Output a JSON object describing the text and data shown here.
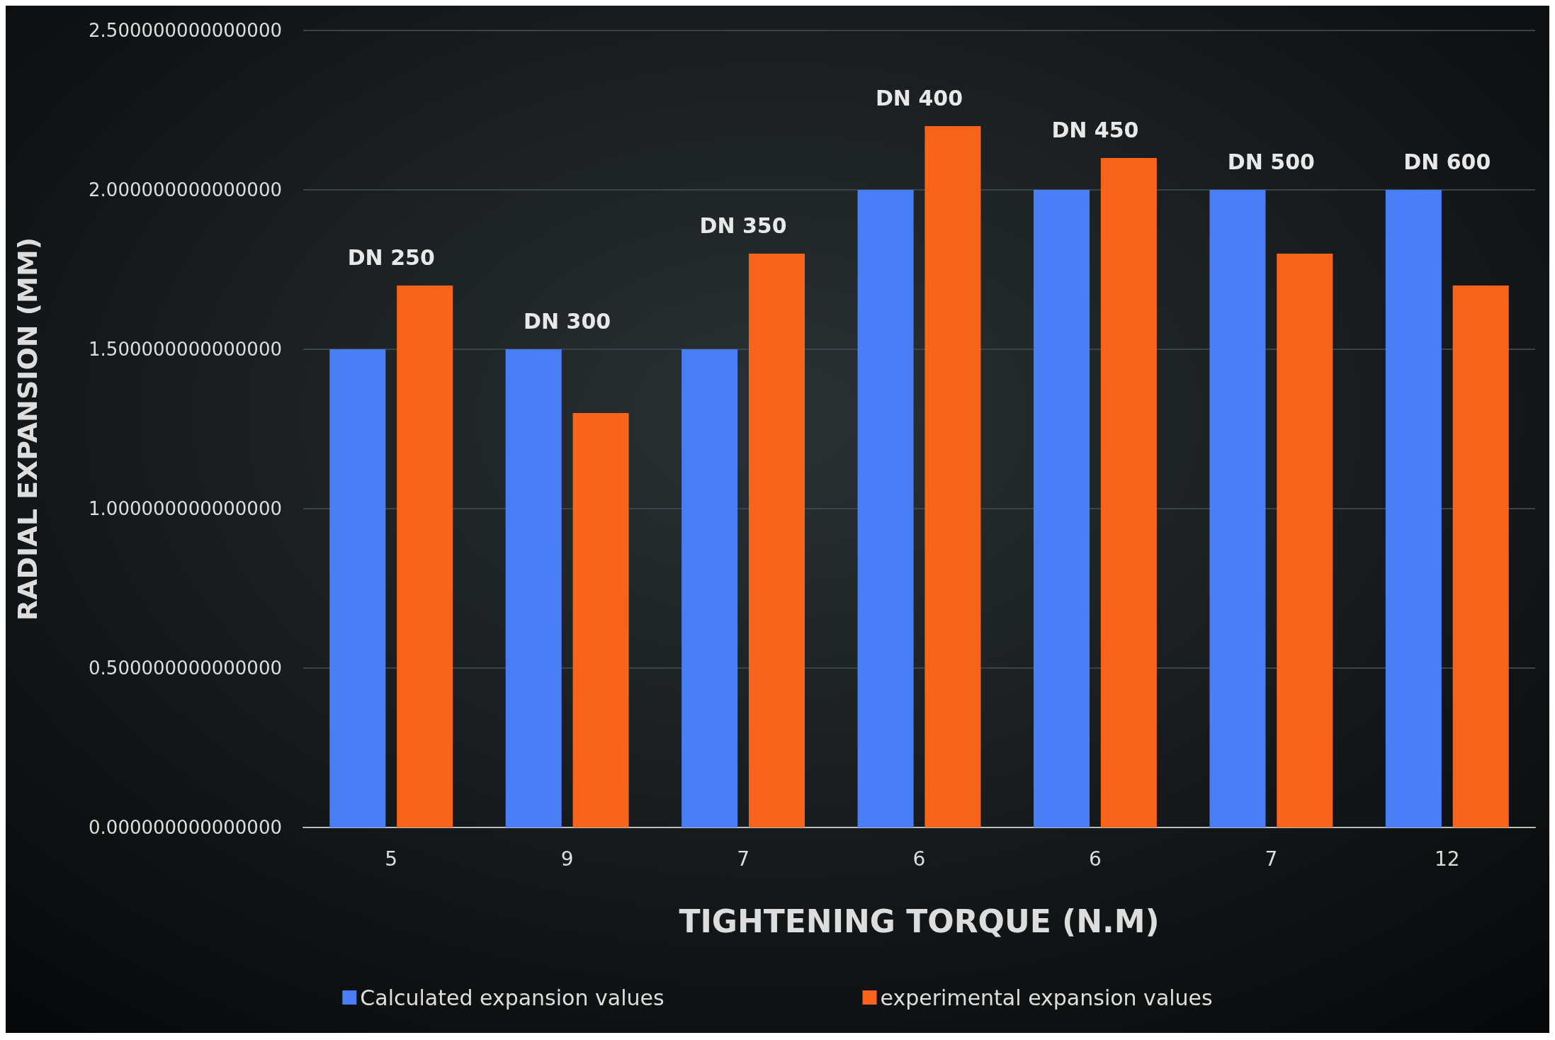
{
  "chart_data": {
    "type": "bar",
    "xlabel": "TIGHTENING TORQUE (N.M)",
    "ylabel": "RADIAL EXPANSION (MM)",
    "categories": [
      "5",
      "9",
      "7",
      "6",
      "6",
      "7",
      "12"
    ],
    "series": [
      {
        "name": "Calculated expansion values",
        "color": "#4a7ef7",
        "values": [
          1.5,
          1.5,
          1.5,
          2,
          2,
          2,
          2
        ]
      },
      {
        "name": "experimental expansion values",
        "color": "#f8641a",
        "values": [
          1.7,
          1.3,
          1.8,
          2.2,
          2.1,
          1.8,
          1.7
        ]
      }
    ],
    "ylim": [
      0,
      2.5
    ],
    "yticks": [
      {
        "value": 0,
        "label": "0.000000000000000"
      },
      {
        "value": 0.5,
        "label": "0.500000000000000"
      },
      {
        "value": 1,
        "label": "1.000000000000000"
      },
      {
        "value": 1.5,
        "label": "1.500000000000000"
      },
      {
        "value": 2,
        "label": "2.000000000000000"
      },
      {
        "value": 2.5,
        "label": "2.500000000000000"
      }
    ],
    "annotations": [
      "DN 250",
      "DN 300",
      "DN 350",
      "DN 400",
      "DN 450",
      "DN 500",
      "DN 600"
    ],
    "grid": "y",
    "legend": "bottom"
  }
}
